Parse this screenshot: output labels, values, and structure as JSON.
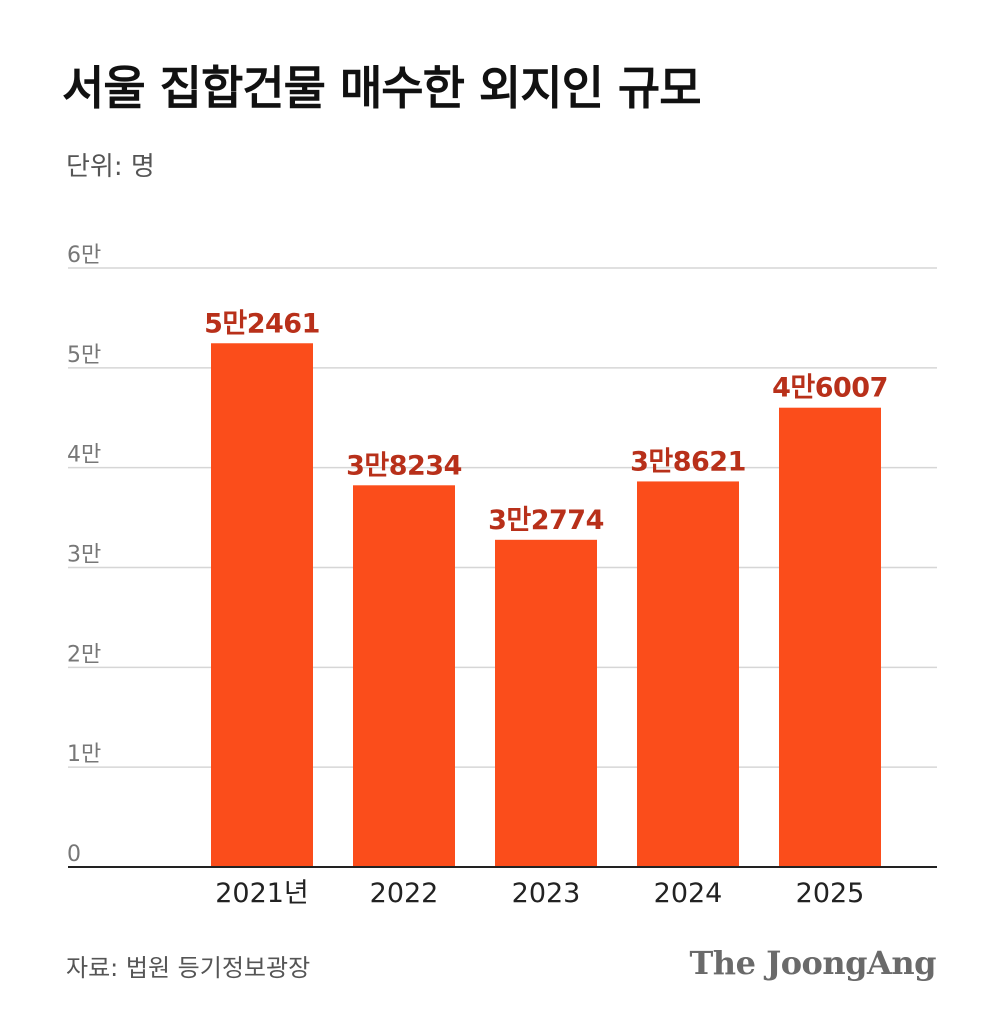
{
  "colors": {
    "bar": "#fb4d1b",
    "label": "#b8301a",
    "grid": "#d6d6d6",
    "axis": "#222222",
    "tick_text": "#777777"
  },
  "footer": {
    "source": "자료: 법원 등기정보광장",
    "brand": "The JoongAng"
  },
  "chart_data": {
    "type": "bar",
    "title": "서울 집합건물 매수한 외지인 규모",
    "unit_label": "단위: 명",
    "categories": [
      "2021년",
      "2022",
      "2023",
      "2024",
      "2025"
    ],
    "values": [
      52461,
      38234,
      32774,
      38621,
      46007
    ],
    "value_labels": [
      "5만2461",
      "3만8234",
      "3만2774",
      "3만8621",
      "4만6007"
    ],
    "ylim": [
      0,
      60000
    ],
    "yticks": [
      0,
      10000,
      20000,
      30000,
      40000,
      50000,
      60000
    ],
    "ytick_labels": [
      "0",
      "1만",
      "2만",
      "3만",
      "4만",
      "5만",
      "6만"
    ],
    "grid": true
  }
}
